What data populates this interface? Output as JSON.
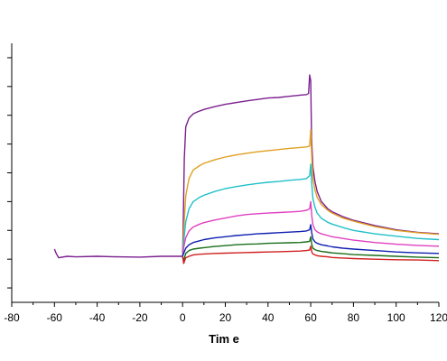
{
  "chart_data": {
    "type": "line",
    "title": "",
    "xlabel": "Tim e",
    "ylabel": "",
    "xlim": [
      -80,
      120
    ],
    "ylim": [
      -0.5,
      8.5
    ],
    "x_ticks": [
      -80,
      -60,
      -40,
      -20,
      0,
      20,
      40,
      60,
      80,
      100,
      120
    ],
    "x_tick_labels": [
      "-80",
      "-60",
      "-40",
      "-20",
      "0",
      "20",
      "40",
      "60",
      "80",
      "100",
      "120"
    ],
    "y_ticks": [
      0,
      1,
      2,
      3,
      4,
      5,
      6,
      7,
      8
    ],
    "grid": false,
    "legend": "none",
    "series": [
      {
        "color": "#7b1f8f",
        "x": [
          -60,
          -59.2,
          -58,
          -54,
          -50,
          -40,
          -30,
          -20,
          -10,
          0,
          0.3,
          0.8,
          1.5,
          3,
          5,
          7,
          10,
          15,
          20,
          25,
          30,
          35,
          40,
          45,
          50,
          55,
          58,
          59,
          59.5,
          60,
          60.4,
          61,
          62,
          63,
          65,
          68,
          70,
          75,
          80,
          90,
          100,
          110,
          120
        ],
        "y": [
          1.35,
          1.2,
          1.05,
          1.1,
          1.08,
          1.1,
          1.08,
          1.07,
          1.1,
          1.1,
          2.2,
          4.5,
          5.6,
          5.9,
          6.05,
          6.12,
          6.2,
          6.3,
          6.38,
          6.44,
          6.5,
          6.55,
          6.6,
          6.62,
          6.66,
          6.7,
          6.72,
          6.76,
          7.4,
          7.2,
          5.2,
          4.2,
          3.7,
          3.35,
          3.0,
          2.75,
          2.65,
          2.48,
          2.35,
          2.17,
          2.02,
          1.93,
          1.88
        ]
      },
      {
        "color": "#e0a020",
        "x": [
          0,
          0.5,
          1.5,
          3,
          5,
          8,
          10,
          15,
          20,
          25,
          30,
          35,
          40,
          45,
          50,
          55,
          58,
          59.5,
          60,
          60.5,
          61,
          62,
          63,
          65,
          68,
          70,
          75,
          80,
          90,
          100,
          110,
          120
        ],
        "y": [
          1.1,
          2.0,
          3.2,
          3.8,
          4.1,
          4.25,
          4.33,
          4.45,
          4.55,
          4.62,
          4.68,
          4.73,
          4.77,
          4.81,
          4.85,
          4.88,
          4.9,
          4.93,
          5.5,
          4.5,
          3.8,
          3.4,
          3.15,
          2.9,
          2.7,
          2.6,
          2.43,
          2.32,
          2.13,
          2.0,
          1.92,
          1.86
        ]
      },
      {
        "color": "#20c0c8",
        "x": [
          0,
          0.5,
          1.5,
          3,
          5,
          8,
          10,
          15,
          20,
          25,
          30,
          35,
          40,
          45,
          50,
          55,
          58,
          59.5,
          60,
          60.5,
          61,
          62,
          63,
          65,
          68,
          70,
          75,
          80,
          90,
          100,
          110,
          120
        ],
        "y": [
          1.1,
          1.6,
          2.3,
          2.75,
          3.0,
          3.15,
          3.22,
          3.35,
          3.45,
          3.52,
          3.58,
          3.63,
          3.67,
          3.7,
          3.74,
          3.77,
          3.8,
          3.9,
          4.3,
          3.6,
          3.1,
          2.8,
          2.6,
          2.42,
          2.28,
          2.22,
          2.1,
          2.0,
          1.88,
          1.8,
          1.72,
          1.68
        ]
      },
      {
        "color": "#e040c0",
        "x": [
          0,
          0.5,
          1.5,
          3,
          5,
          8,
          10,
          15,
          20,
          25,
          30,
          35,
          40,
          45,
          50,
          55,
          58,
          59.5,
          60,
          60.5,
          61,
          62,
          63,
          65,
          68,
          70,
          75,
          80,
          90,
          100,
          110,
          120
        ],
        "y": [
          1.1,
          1.4,
          1.75,
          1.98,
          2.12,
          2.22,
          2.27,
          2.36,
          2.43,
          2.5,
          2.55,
          2.58,
          2.6,
          2.62,
          2.64,
          2.66,
          2.7,
          2.75,
          3.0,
          2.5,
          2.2,
          2.02,
          1.95,
          1.88,
          1.82,
          1.78,
          1.72,
          1.66,
          1.58,
          1.52,
          1.48,
          1.45
        ]
      },
      {
        "color": "#1020b0",
        "x": [
          0,
          0.5,
          1.5,
          3,
          5,
          8,
          10,
          15,
          20,
          25,
          30,
          35,
          40,
          45,
          50,
          55,
          58,
          59.5,
          60,
          60.5,
          61,
          62,
          63,
          65,
          68,
          70,
          75,
          80,
          90,
          100,
          110,
          120
        ],
        "y": [
          1.1,
          1.2,
          1.38,
          1.5,
          1.58,
          1.64,
          1.68,
          1.74,
          1.78,
          1.82,
          1.85,
          1.88,
          1.9,
          1.92,
          1.94,
          1.96,
          1.98,
          2.02,
          2.2,
          1.9,
          1.7,
          1.6,
          1.55,
          1.5,
          1.46,
          1.43,
          1.38,
          1.35,
          1.3,
          1.25,
          1.22,
          1.2
        ]
      },
      {
        "color": "#1a6e1a",
        "x": [
          0,
          0.5,
          1.5,
          3,
          5,
          8,
          10,
          15,
          20,
          25,
          30,
          35,
          40,
          45,
          50,
          55,
          58,
          59.5,
          60,
          60.5,
          61,
          62,
          63,
          65,
          68,
          70,
          75,
          80,
          90,
          100,
          110,
          120
        ],
        "y": [
          1.1,
          0.95,
          1.2,
          1.3,
          1.35,
          1.38,
          1.4,
          1.44,
          1.47,
          1.5,
          1.52,
          1.53,
          1.55,
          1.56,
          1.57,
          1.58,
          1.6,
          1.62,
          1.78,
          1.5,
          1.38,
          1.33,
          1.3,
          1.27,
          1.24,
          1.22,
          1.19,
          1.16,
          1.13,
          1.1,
          1.07,
          1.05
        ]
      },
      {
        "color": "#d02020",
        "x": [
          0,
          0.5,
          1.5,
          3,
          5,
          8,
          10,
          15,
          20,
          25,
          30,
          35,
          40,
          45,
          50,
          55,
          58,
          59.5,
          60,
          60.5,
          61,
          62,
          63,
          65,
          68,
          70,
          75,
          80,
          90,
          100,
          110,
          120
        ],
        "y": [
          1.1,
          0.85,
          1.05,
          1.1,
          1.15,
          1.17,
          1.18,
          1.2,
          1.21,
          1.22,
          1.23,
          1.24,
          1.25,
          1.26,
          1.27,
          1.28,
          1.3,
          1.32,
          1.45,
          1.25,
          1.18,
          1.15,
          1.12,
          1.1,
          1.08,
          1.06,
          1.04,
          1.02,
          1.0,
          0.98,
          0.97,
          0.95
        ]
      }
    ]
  }
}
